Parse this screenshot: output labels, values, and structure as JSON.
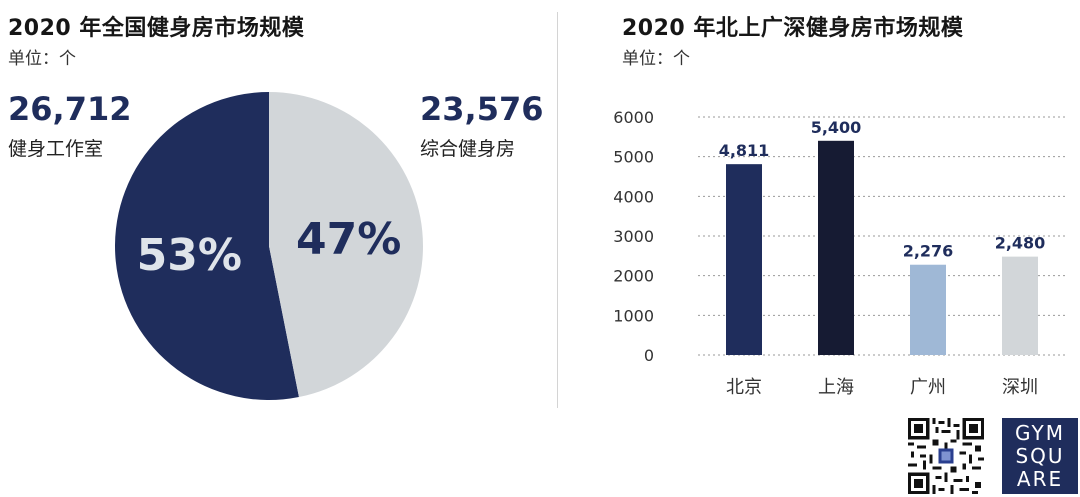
{
  "left": {
    "title": "2020 年全国健身房市场规模",
    "unit": "单位：个",
    "studio_value": "26,712",
    "studio_label": "健身工作室",
    "gym_value": "23,576",
    "gym_label": "综合健身房",
    "studio_pct": "53%",
    "gym_pct": "47%"
  },
  "right": {
    "title": "2020 年北上广深健身房市场规模",
    "unit": "单位：个"
  },
  "logo": {
    "lines": [
      "GYM",
      "SQU",
      "ARE"
    ]
  },
  "colors": {
    "navy": "#1f2d5c",
    "darknavy": "#161b33",
    "lightblue": "#9fb8d6",
    "lightgray": "#d2d6d9"
  },
  "chart_data": [
    {
      "type": "pie",
      "labels": [
        "健身工作室",
        "综合健身房"
      ],
      "values": [
        26712,
        23576
      ],
      "percent_labels": [
        "53%",
        "47%"
      ],
      "colors": [
        "#1f2d5c",
        "#d2d6d9"
      ],
      "title": "2020 年全国健身房市场规模"
    },
    {
      "type": "bar",
      "title": "2020 年北上广深健身房市场规模",
      "categories": [
        "北京",
        "上海",
        "广州",
        "深圳"
      ],
      "values": [
        4811,
        5400,
        2276,
        2480
      ],
      "data_labels": [
        "4,811",
        "5,400",
        "2,276",
        "2,480"
      ],
      "colors": [
        "#1f2d5c",
        "#161b33",
        "#9fb8d6",
        "#d2d6d9"
      ],
      "ylim": [
        0,
        6000
      ],
      "yticks": [
        0,
        1000,
        2000,
        3000,
        4000,
        5000,
        6000
      ],
      "grid": true,
      "grid_style": "dotted"
    }
  ]
}
